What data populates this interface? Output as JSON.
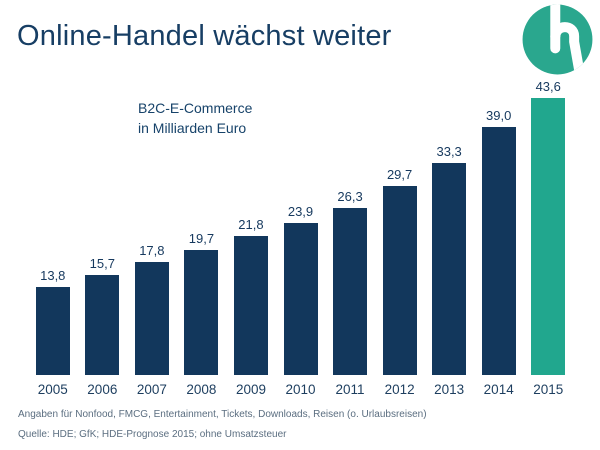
{
  "header": {
    "title": "Online-Handel wächst weiter"
  },
  "colors": {
    "bar_navy": "#12375c",
    "highlight_teal": "#21a78e",
    "title_text": "#173e64",
    "axis_text": "#1d3e5f",
    "footer_text": "#5b6e80",
    "logo_green": "#2aa78e"
  },
  "chart_data": {
    "type": "bar",
    "title": "B2C-E-Commerce in Milliarden Euro",
    "subtitle_lines": "B2C-E-Commerce\nin Milliarden Euro",
    "categories": [
      "2005",
      "2006",
      "2007",
      "2008",
      "2009",
      "2010",
      "2011",
      "2012",
      "2013",
      "2014",
      "2015"
    ],
    "values": [
      13.8,
      15.7,
      17.8,
      19.7,
      21.8,
      23.9,
      26.3,
      29.7,
      33.3,
      39.0,
      43.6
    ],
    "value_labels": [
      "13,8",
      "15,7",
      "17,8",
      "19,7",
      "21,8",
      "23,9",
      "26,3",
      "29,7",
      "33,3",
      "39,0",
      "43,6"
    ],
    "ylabel": "Milliarden Euro",
    "xlabel": "",
    "ylim": [
      0,
      43.6
    ],
    "grid": false,
    "legend": false,
    "bar_color": "#12375c",
    "highlight_index": 10,
    "highlight_color": "#21a78e"
  },
  "footer": {
    "line1": "Angaben für Nonfood, FMCG, Entertainment, Tickets, Downloads, Reisen (o. Urlaubsreisen)",
    "line2": "Quelle: HDE; GfK; HDE-Prognose 2015; ohne Umsatzsteuer"
  }
}
